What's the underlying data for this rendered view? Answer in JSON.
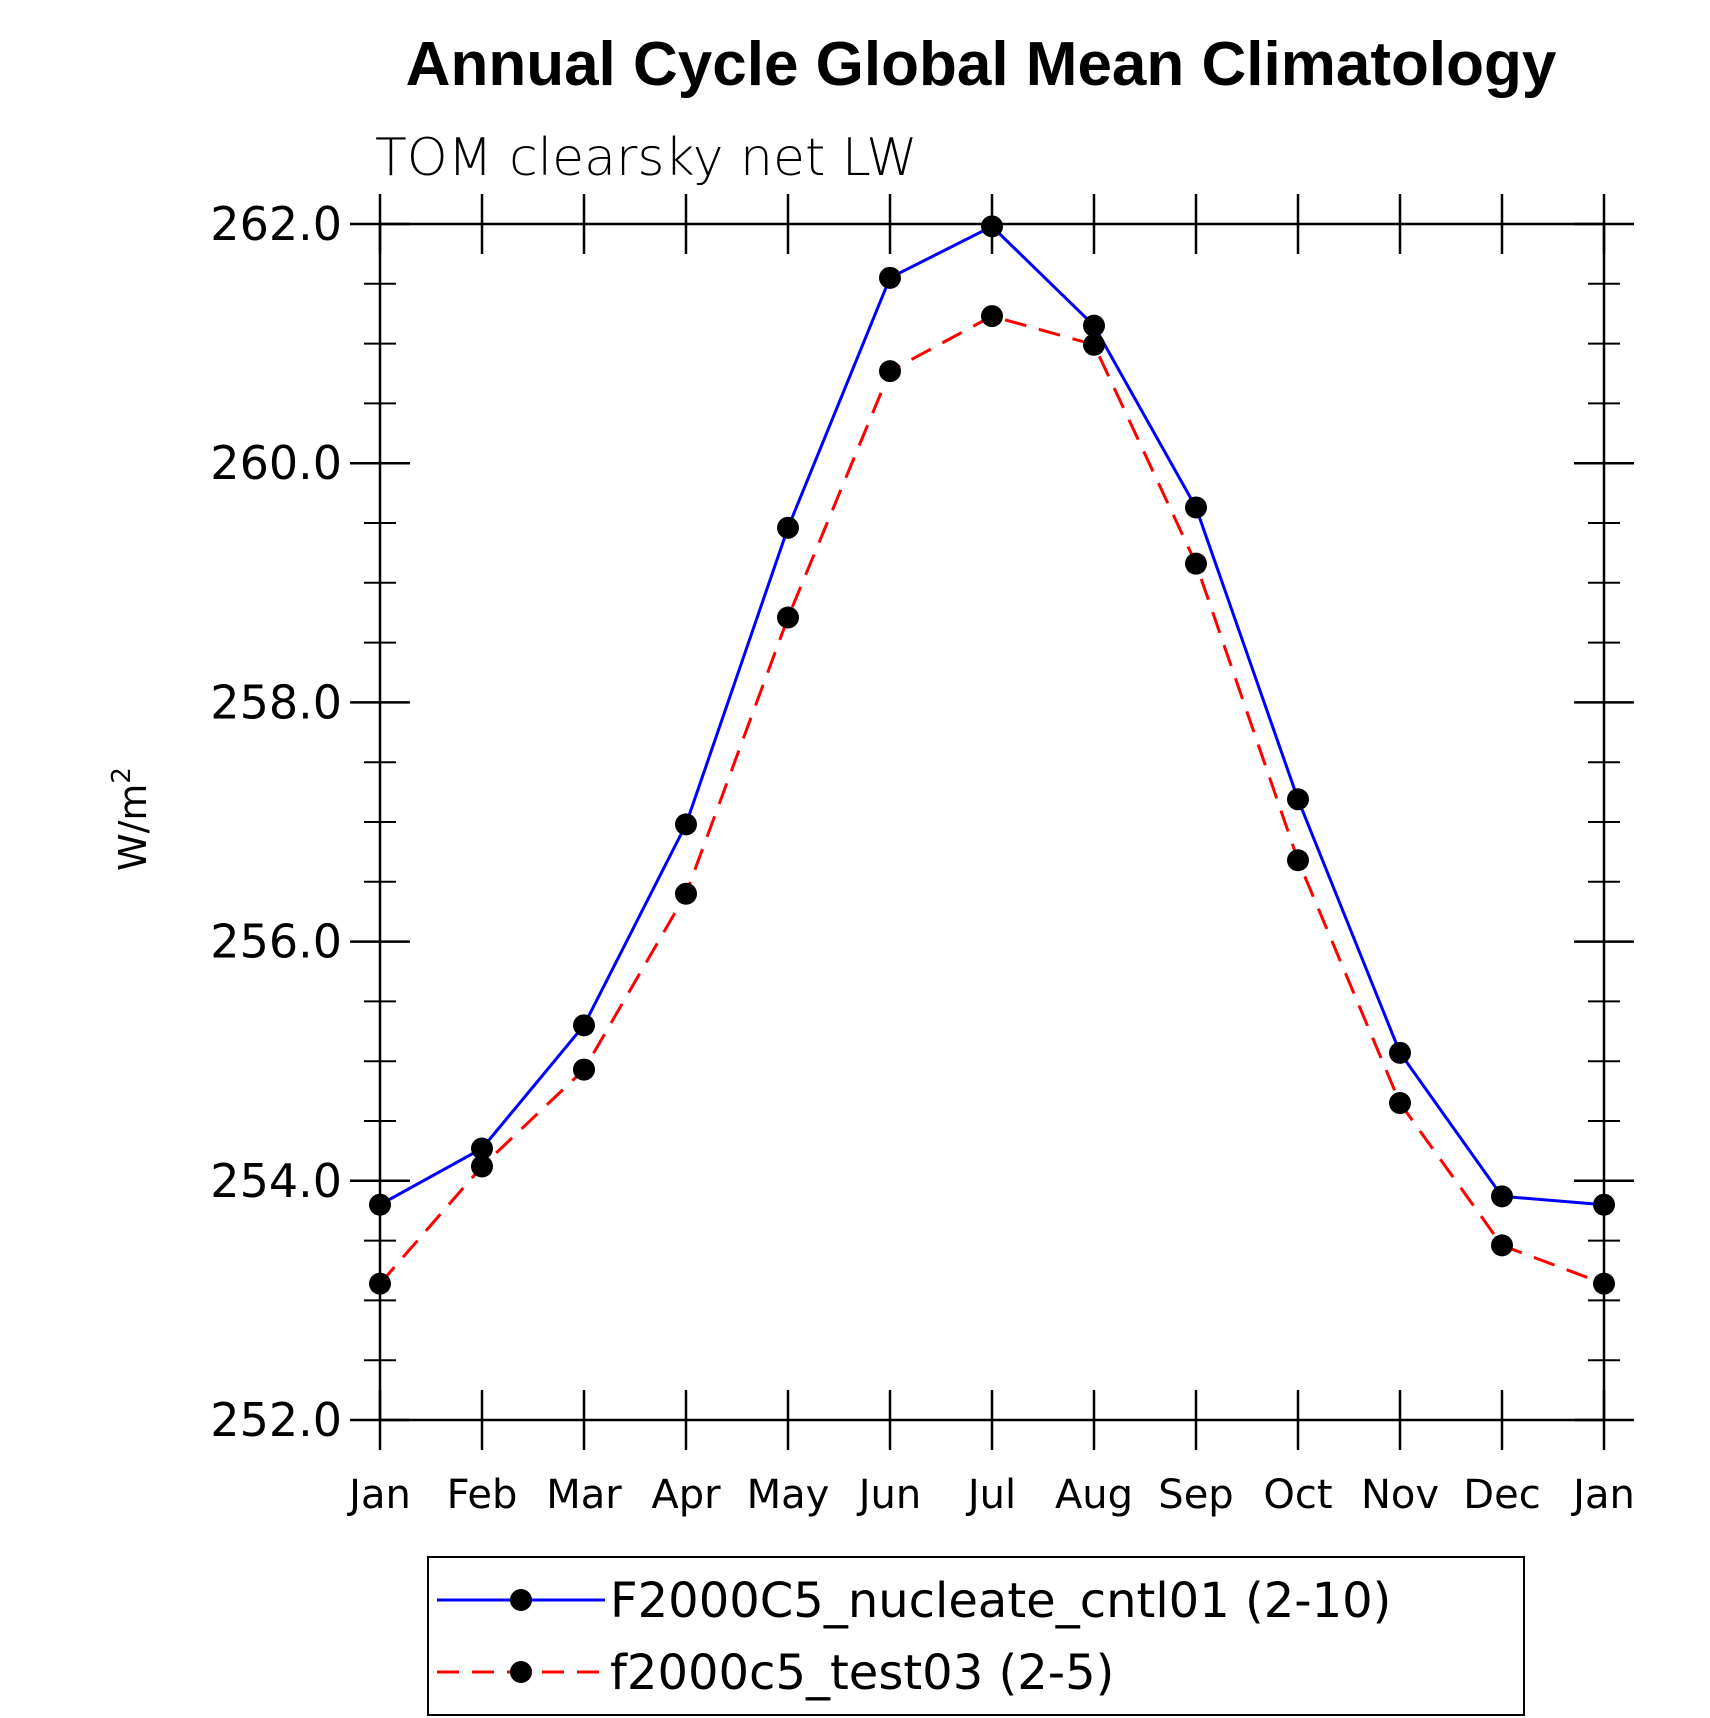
{
  "chart_data": {
    "type": "line",
    "title": "Annual Cycle Global Mean Climatology",
    "subtitle": "TOM clearsky net LW",
    "ylabel": "W/m",
    "ylabel_sup": "2",
    "xlabel": "",
    "categories": [
      "Jan",
      "Feb",
      "Mar",
      "Apr",
      "May",
      "Jun",
      "Jul",
      "Aug",
      "Sep",
      "Oct",
      "Nov",
      "Dec",
      "Jan"
    ],
    "ylim": [
      252.0,
      262.0
    ],
    "yticks": [
      252.0,
      254.0,
      256.0,
      258.0,
      260.0,
      262.0
    ],
    "ytick_labels": [
      "252.0",
      "254.0",
      "256.0",
      "258.0",
      "260.0",
      "262.0"
    ],
    "y_minor_step": 0.5,
    "grid": false,
    "legend_position": "bottom",
    "series": [
      {
        "name": "F2000C5_nucleate_cntl01 (2-10)",
        "color": "#0000ff",
        "dashed": false,
        "values": [
          253.8,
          254.27,
          255.3,
          256.98,
          259.46,
          261.55,
          261.98,
          261.15,
          259.63,
          257.19,
          255.07,
          253.87,
          253.8
        ]
      },
      {
        "name": "f2000c5_test03 (2-5)",
        "color": "#ff0000",
        "dashed": true,
        "values": [
          253.14,
          254.12,
          254.93,
          256.4,
          258.71,
          260.77,
          261.23,
          260.99,
          259.16,
          256.68,
          254.65,
          253.46,
          253.14
        ]
      }
    ],
    "marker_color": "#000000"
  }
}
